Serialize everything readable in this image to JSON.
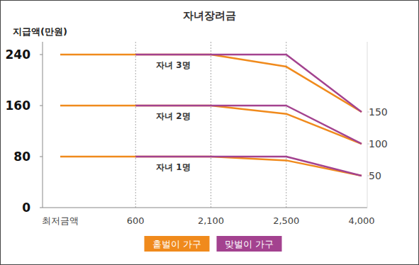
{
  "chart_data": {
    "type": "line",
    "title": "자녀장려금",
    "y_label": "지급액(만원)",
    "categories": [
      "최저금액",
      "600",
      "2,100",
      "2,500",
      "4,000"
    ],
    "ylim": [
      0,
      260
    ],
    "yticks": [
      0,
      80,
      160,
      240
    ],
    "y2lim": [
      0,
      260
    ],
    "y2ticks": [
      50,
      100,
      150
    ],
    "grid": "x",
    "legend": "bottom",
    "series": [
      {
        "name": "홑벌이 가구",
        "label": "자녀 1명",
        "color": "#f08a1c",
        "values": [
          80,
          80,
          80,
          74,
          50
        ]
      },
      {
        "name": "맞벌이 가구",
        "color": "#a3428f",
        "values": [
          null,
          80,
          80,
          80,
          50
        ]
      },
      {
        "name": "홑벌이 가구",
        "label": "자녀 2명",
        "color": "#f08a1c",
        "values": [
          160,
          160,
          160,
          147,
          100
        ]
      },
      {
        "name": "맞벌이 가구",
        "color": "#a3428f",
        "values": [
          null,
          160,
          160,
          160,
          100
        ]
      },
      {
        "name": "홑벌이 가구",
        "label": "자녀 3명",
        "color": "#f08a1c",
        "values": [
          240,
          240,
          240,
          221,
          150
        ]
      },
      {
        "name": "맞벌이 가구",
        "color": "#a3428f",
        "values": [
          null,
          240,
          240,
          240,
          150
        ]
      }
    ]
  }
}
